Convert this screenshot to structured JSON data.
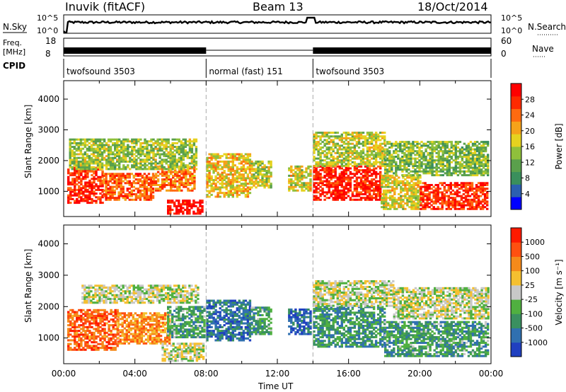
{
  "header": {
    "station": "Inuvik (fitACF)",
    "beam": "Beam 13",
    "date": "18/Oct/2014"
  },
  "panels": {
    "nsky_label": "N.Sky",
    "nsky_ticks": [
      "10^5",
      "10^0"
    ],
    "nsearch_label": "N.Search",
    "nsearch_ticks": [
      "10^5",
      "10^0"
    ],
    "freq_label": "Freq.",
    "freq_unit": "[MHz]",
    "freq_ticks": [
      "18",
      "8"
    ],
    "nave_label": "Nave",
    "nave_ticks": [
      "60",
      "0"
    ],
    "cpid_label": "CPID",
    "cpid_segments": [
      {
        "name": "twofsound 3503",
        "start": 0,
        "end": 8
      },
      {
        "name": "normal (fast) 151",
        "start": 8,
        "end": 14
      },
      {
        "name": "twofsound 3503",
        "start": 14,
        "end": 24
      }
    ]
  },
  "chart_data": [
    {
      "type": "heatmap",
      "quantity": "Power",
      "ylabel": "Slant Range [km]",
      "yticks": [
        "4000",
        "3000",
        "2000",
        "1000"
      ],
      "ylim": [
        180,
        4600
      ],
      "xlim": [
        0,
        24
      ],
      "colorbar": {
        "label": "Power [dB]",
        "ticks": [
          "28",
          "24",
          "20",
          "16",
          "12",
          "8",
          "4"
        ],
        "colors": [
          "#0000ff",
          "#2b5fb0",
          "#3a8f5c",
          "#5aa04c",
          "#8fc03b",
          "#e6d21f",
          "#f5a21a",
          "#ff6a10",
          "#ff2a00",
          "#ff0000"
        ]
      },
      "regions": [
        {
          "t0": 0.2,
          "t1": 2.2,
          "r0": 600,
          "r1": 1800,
          "v": 0.9
        },
        {
          "t0": 2.2,
          "t1": 5.0,
          "r0": 700,
          "r1": 1600,
          "v": 0.8
        },
        {
          "t0": 5.0,
          "t1": 7.3,
          "r0": 1000,
          "r1": 1800,
          "v": 0.75
        },
        {
          "t0": 5.8,
          "t1": 7.8,
          "r0": 250,
          "r1": 700,
          "v": 1.0
        },
        {
          "t0": 0.3,
          "t1": 7.5,
          "r0": 1700,
          "r1": 2700,
          "v": 0.45
        },
        {
          "t0": 8.0,
          "t1": 10.5,
          "r0": 800,
          "r1": 2200,
          "v": 0.6
        },
        {
          "t0": 10.5,
          "t1": 11.6,
          "r0": 1100,
          "r1": 2000,
          "v": 0.5
        },
        {
          "t0": 12.6,
          "t1": 13.8,
          "r0": 1000,
          "r1": 1800,
          "v": 0.55
        },
        {
          "t0": 14.0,
          "t1": 17.8,
          "r0": 700,
          "r1": 1800,
          "v": 0.95
        },
        {
          "t0": 14.0,
          "t1": 18.0,
          "r0": 1800,
          "r1": 2900,
          "v": 0.5
        },
        {
          "t0": 17.8,
          "t1": 20.0,
          "r0": 400,
          "r1": 1500,
          "v": 0.55
        },
        {
          "t0": 20.0,
          "t1": 23.8,
          "r0": 400,
          "r1": 1300,
          "v": 0.9
        },
        {
          "t0": 18.0,
          "t1": 23.8,
          "r0": 1500,
          "r1": 2600,
          "v": 0.4
        }
      ]
    },
    {
      "type": "heatmap",
      "quantity": "Velocity",
      "ylabel": "Slant Range [km]",
      "yticks": [
        "4000",
        "3000",
        "2000",
        "1000"
      ],
      "ylim": [
        180,
        4600
      ],
      "xlim": [
        0,
        24
      ],
      "xticks": [
        "00:00",
        "04:00",
        "08:00",
        "12:00",
        "16:00",
        "20:00",
        "00:00"
      ],
      "xlabel": "Time UT",
      "colorbar": {
        "label": "Velocity [m s⁻¹]",
        "ticks": [
          "1000",
          "500",
          "100",
          "25",
          "-25",
          "-100",
          "-500",
          "-1000"
        ],
        "colors": [
          "#2040c0",
          "#3070b0",
          "#3a9060",
          "#50b040",
          "#c8c8c8",
          "#f5c030",
          "#f58a1a",
          "#ff5010",
          "#ff1a00"
        ]
      },
      "regions": [
        {
          "t0": 0.2,
          "t1": 3.0,
          "r0": 600,
          "r1": 1900,
          "v": 0.85
        },
        {
          "t0": 3.0,
          "t1": 6.0,
          "r0": 800,
          "r1": 1800,
          "v": 0.75
        },
        {
          "t0": 5.8,
          "t1": 7.9,
          "r0": 1000,
          "r1": 2000,
          "v": 0.3
        },
        {
          "t0": 1.0,
          "t1": 7.5,
          "r0": 2100,
          "r1": 2700,
          "v": 0.5
        },
        {
          "t0": 5.5,
          "t1": 7.8,
          "r0": 250,
          "r1": 800,
          "v": 0.5
        },
        {
          "t0": 8.0,
          "t1": 10.5,
          "r0": 900,
          "r1": 2200,
          "v": 0.15
        },
        {
          "t0": 10.5,
          "t1": 11.6,
          "r0": 1100,
          "r1": 2000,
          "v": 0.3
        },
        {
          "t0": 12.6,
          "t1": 13.8,
          "r0": 1100,
          "r1": 1900,
          "v": 0.1
        },
        {
          "t0": 14.0,
          "t1": 18.0,
          "r0": 700,
          "r1": 2000,
          "v": 0.25
        },
        {
          "t0": 14.0,
          "t1": 18.5,
          "r0": 2000,
          "r1": 2800,
          "v": 0.5
        },
        {
          "t0": 18.0,
          "t1": 23.8,
          "r0": 400,
          "r1": 1500,
          "v": 0.28
        },
        {
          "t0": 18.5,
          "t1": 23.8,
          "r0": 1600,
          "r1": 2600,
          "v": 0.5
        }
      ]
    }
  ]
}
